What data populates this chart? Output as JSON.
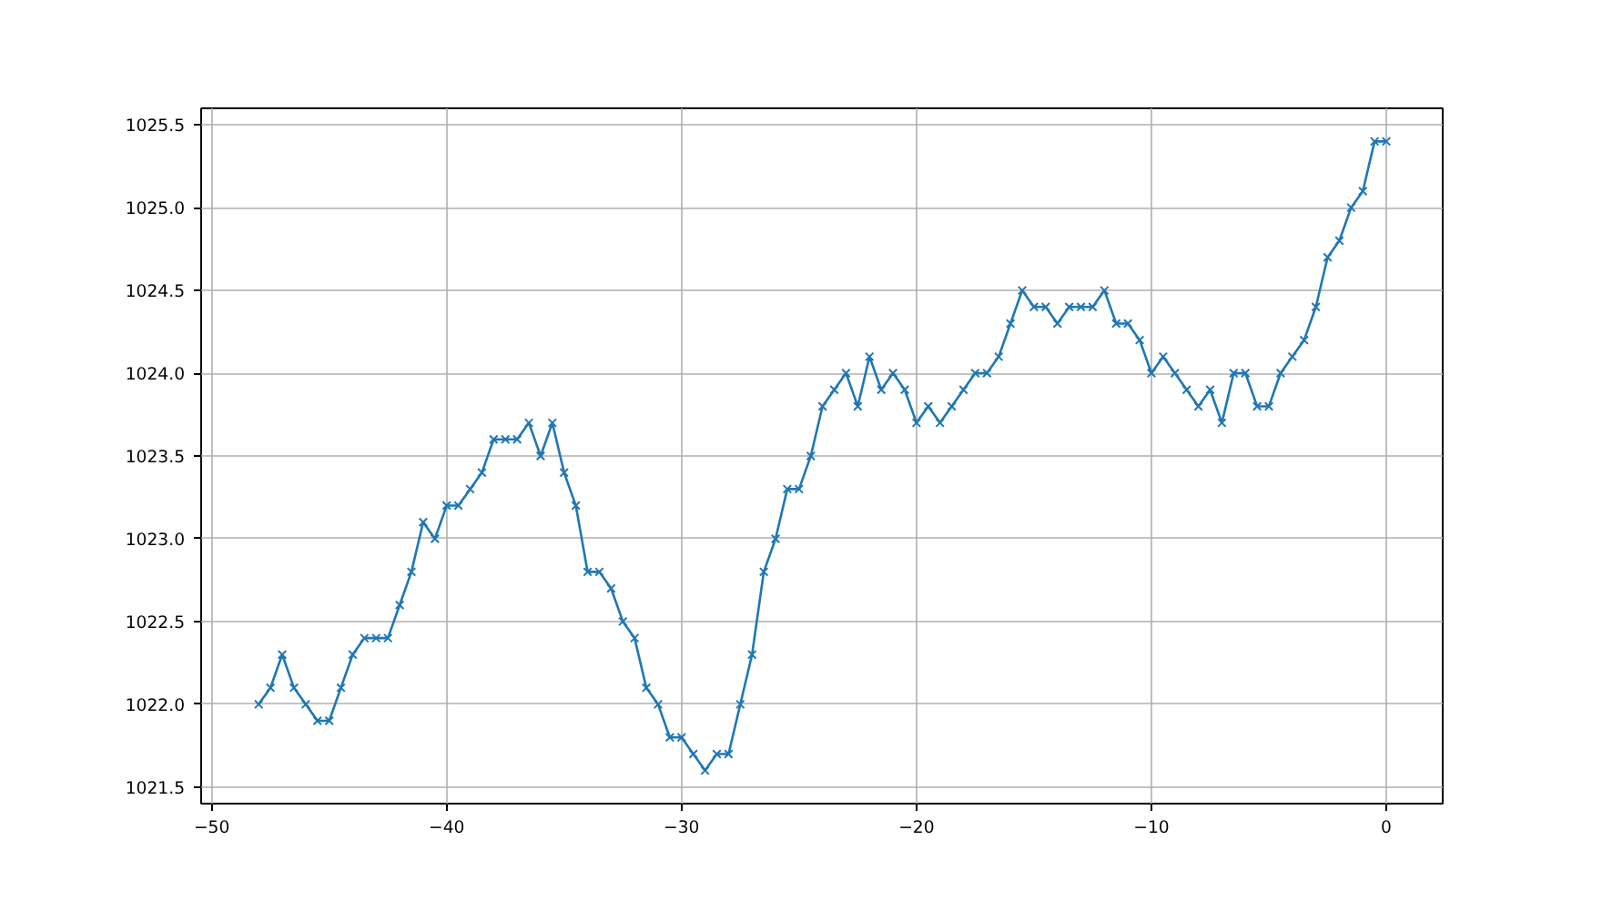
{
  "chart_data": {
    "type": "line",
    "marker": "cross",
    "grid": true,
    "line_style": "solid",
    "xlim": [
      -50.45,
      2.4
    ],
    "xticks": [
      {
        "value": -50,
        "label": "−50"
      },
      {
        "value": -40,
        "label": "−40"
      },
      {
        "value": -30,
        "label": "−30"
      },
      {
        "value": -20,
        "label": "−20"
      },
      {
        "value": -10,
        "label": "−10"
      },
      0
    ],
    "ylim": [
      1021.4,
      1025.6
    ],
    "yticks": [
      {
        "value": 1021.5,
        "label": "1021.5"
      },
      {
        "value": 1022.0,
        "label": "1022.0"
      },
      {
        "value": 1022.5,
        "label": "1022.5"
      },
      {
        "value": 1023.0,
        "label": "1023.0"
      },
      {
        "value": 1023.5,
        "label": "1023.5"
      },
      {
        "value": 1024.0,
        "label": "1024.0"
      },
      {
        "value": 1024.5,
        "label": "1024.5"
      },
      {
        "value": 1025.0,
        "label": "1025.0"
      },
      {
        "value": 1025.5,
        "label": "1025.5"
      }
    ],
    "x": [
      -48,
      -47.5,
      -47,
      -46.5,
      -46,
      -45.5,
      -45,
      -44.5,
      -44,
      -43.5,
      -43,
      -42.5,
      -42,
      -41.5,
      -41,
      -40.5,
      -40,
      -39.5,
      -39,
      -38.5,
      -38,
      -37.5,
      -37,
      -36.5,
      -36,
      -35.5,
      -35,
      -34.5,
      -34,
      -33.5,
      -33,
      -32.5,
      -32,
      -31.5,
      -31,
      -30.5,
      -30,
      -29.5,
      -29,
      -28.5,
      -28,
      -27.5,
      -27,
      -26.5,
      -26,
      -25.5,
      -25,
      -24.5,
      -24,
      -23.5,
      -23,
      -22.5,
      -22,
      -21.5,
      -21,
      -20.5,
      -20,
      -19.5,
      -19,
      -18.5,
      -18,
      -17.5,
      -17,
      -16.5,
      -16,
      -15.5,
      -15,
      -14.5,
      -14,
      -13.5,
      -13,
      -12.5,
      -12,
      -11.5,
      -11,
      -10.5,
      -10,
      -9.5,
      -9,
      -8.5,
      -8,
      -7.5,
      -7,
      -6.5,
      -6,
      -5.5,
      -5,
      -4.5,
      -4,
      -3.5,
      -3,
      -2.5,
      -2,
      -1.5,
      -1,
      -0.5,
      0
    ],
    "series": [
      {
        "color": "#1f77b4",
        "values": [
          1022.0,
          1022.1,
          1022.3,
          1022.1,
          1022.0,
          1021.9,
          1021.9,
          1022.1,
          1022.3,
          1022.4,
          1022.4,
          1022.4,
          1022.6,
          1022.8,
          1023.1,
          1023.0,
          1023.2,
          1023.2,
          1023.3,
          1023.4,
          1023.6,
          1023.6,
          1023.6,
          1023.7,
          1023.5,
          1023.7,
          1023.4,
          1023.2,
          1022.8,
          1022.8,
          1022.7,
          1022.5,
          1022.4,
          1022.1,
          1022.0,
          1021.8,
          1021.8,
          1021.7,
          1021.6,
          1021.7,
          1021.7,
          1022.0,
          1022.3,
          1022.8,
          1023.0,
          1023.3,
          1023.3,
          1023.5,
          1023.8,
          1023.9,
          1024.0,
          1023.8,
          1024.1,
          1023.9,
          1024.0,
          1023.9,
          1023.7,
          1023.8,
          1023.7,
          1023.8,
          1023.9,
          1024.0,
          1024.0,
          1024.1,
          1024.3,
          1024.5,
          1024.4,
          1024.4,
          1024.3,
          1024.4,
          1024.4,
          1024.4,
          1024.5,
          1024.3,
          1024.3,
          1024.2,
          1024.0,
          1024.1,
          1024.0,
          1023.9,
          1023.8,
          1023.9,
          1023.7,
          1024.0,
          1024.0,
          1023.8,
          1023.8,
          1024.0,
          1024.1,
          1024.2,
          1024.4,
          1024.7,
          1024.8,
          1025.0,
          1025.1,
          1025.4,
          1025.4
        ]
      }
    ]
  }
}
